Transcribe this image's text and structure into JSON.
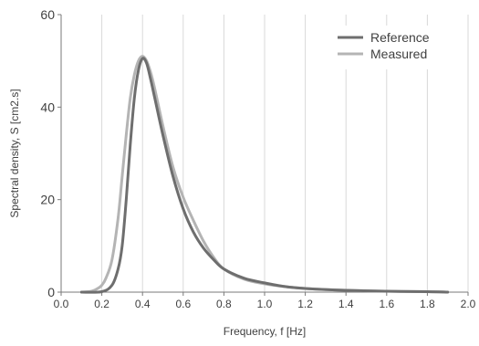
{
  "chart_data": {
    "type": "line",
    "xlabel": "Frequency, f [Hz]",
    "ylabel": "Spectral density, S [cm2.s]",
    "xlim": [
      0.0,
      2.0
    ],
    "ylim": [
      0,
      60
    ],
    "x_ticks": [
      0.0,
      0.2,
      0.4,
      0.6,
      0.8,
      1.0,
      1.2,
      1.4,
      1.6,
      1.8,
      2.0
    ],
    "x_tick_labels": [
      "0.0",
      "0.2",
      "0.4",
      "0.6",
      "0.8",
      "1.0",
      "1.2",
      "1.4",
      "1.6",
      "1.8",
      "2.0"
    ],
    "y_ticks": [
      0,
      20,
      40,
      60
    ],
    "y_tick_labels": [
      "0",
      "20",
      "40",
      "60"
    ],
    "grid": "vertical",
    "legend_position": "top-right",
    "series": [
      {
        "name": "Reference",
        "color": "#6e6e6e",
        "x": [
          0.1,
          0.2,
          0.25,
          0.28,
          0.3,
          0.32,
          0.34,
          0.36,
          0.38,
          0.4,
          0.42,
          0.44,
          0.46,
          0.5,
          0.55,
          0.6,
          0.65,
          0.7,
          0.75,
          0.8,
          0.9,
          1.0,
          1.1,
          1.2,
          1.4,
          1.6,
          1.8,
          1.9
        ],
        "y": [
          0.0,
          0.1,
          1.5,
          5.0,
          10.0,
          20.0,
          32.0,
          42.0,
          48.0,
          50.5,
          49.5,
          46.0,
          42.0,
          34.0,
          25.0,
          18.0,
          13.0,
          9.5,
          7.0,
          5.0,
          3.0,
          2.0,
          1.2,
          0.8,
          0.4,
          0.2,
          0.1,
          0.0
        ]
      },
      {
        "name": "Measured",
        "color": "#b4b4b4",
        "x": [
          0.1,
          0.15,
          0.18,
          0.2,
          0.22,
          0.25,
          0.28,
          0.3,
          0.32,
          0.34,
          0.36,
          0.38,
          0.4,
          0.42,
          0.44,
          0.46,
          0.5,
          0.55,
          0.6,
          0.65,
          0.7,
          0.75,
          0.8,
          0.9,
          1.0,
          1.1,
          1.2,
          1.4,
          1.6,
          1.8,
          1.9
        ],
        "y": [
          0.0,
          0.2,
          0.8,
          1.5,
          3.0,
          7.0,
          16.0,
          25.0,
          34.0,
          42.0,
          47.0,
          50.0,
          51.0,
          50.0,
          47.5,
          44.0,
          36.0,
          27.0,
          20.5,
          15.5,
          11.0,
          7.5,
          5.0,
          2.8,
          1.8,
          1.2,
          0.8,
          0.4,
          0.2,
          0.1,
          0.0
        ]
      }
    ]
  }
}
